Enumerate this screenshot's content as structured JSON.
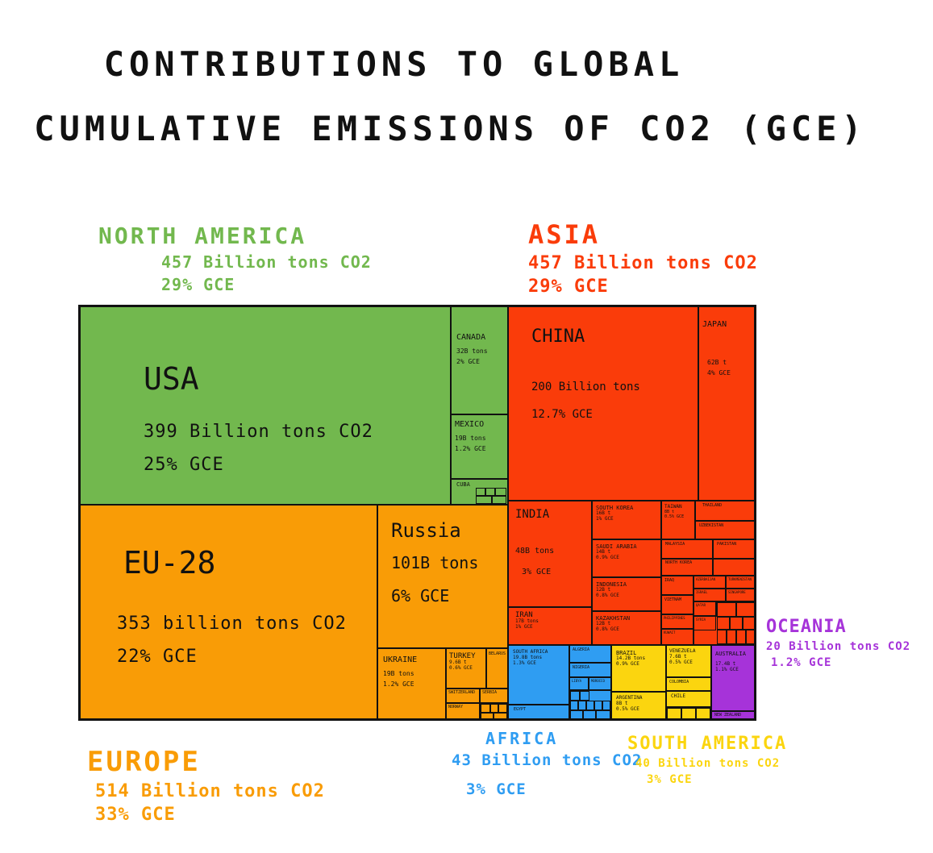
{
  "title_line1": "CONTRIBUTIONS TO GLOBAL",
  "title_line2": "CUMULATIVE EMISSIONS OF CO2 (GCE)",
  "colors": {
    "north_america": "#72b84e",
    "asia": "#fa3c0a",
    "europe": "#f99c06",
    "africa": "#2f9df2",
    "south_america": "#fbd50f",
    "oceania": "#a633d9"
  },
  "regions": {
    "north_america": {
      "name": "NORTH AMERICA",
      "amount": "457 Billion tons CO2",
      "share": "29%  GCE"
    },
    "asia": {
      "name": "ASIA",
      "amount": "457 Billion tons CO2",
      "share": "29%  GCE"
    },
    "europe": {
      "name": "EUROPE",
      "amount": "514 Billion tons CO2",
      "share": "33%  GCE"
    },
    "africa": {
      "name": "AFRICA",
      "amount": "43 Billion tons CO2",
      "share": "3%  GCE"
    },
    "south_america": {
      "name": "SOUTH AMERICA",
      "amount": "40 Billion tons CO2",
      "share": "3%  GCE"
    },
    "oceania": {
      "name": "OCEANIA",
      "amount": "20 Billion tons CO2",
      "share": "1.2%  GCE"
    }
  },
  "chart_data": {
    "type": "treemap",
    "title": "CONTRIBUTIONS TO GLOBAL CUMULATIVE EMISSIONS OF CO2 (GCE)",
    "regions": [
      {
        "name": "North America",
        "value": 457,
        "share": 29
      },
      {
        "name": "Asia",
        "value": 457,
        "share": 29
      },
      {
        "name": "Europe",
        "value": 514,
        "share": 33
      },
      {
        "name": "Africa",
        "value": 43,
        "share": 3
      },
      {
        "name": "South America",
        "value": 40,
        "share": 3
      },
      {
        "name": "Oceania",
        "value": 20,
        "share": 1.2
      }
    ],
    "cells": {
      "usa": {
        "name": "USA",
        "amount": "399 Billion tons CO2",
        "share": "25%  GCE",
        "value": 399
      },
      "canada": {
        "name": "CANADA",
        "amount": "32B tons",
        "share": "2%  GCE",
        "value": 32
      },
      "mexico": {
        "name": "MEXICO",
        "amount": "19B tons",
        "share": "1.2%  GCE",
        "value": 19
      },
      "cuba": {
        "name": "CUBA"
      },
      "eu28": {
        "name": "EU-28",
        "amount": "353 billion tons CO2",
        "share": "22%  GCE",
        "value": 353
      },
      "russia": {
        "name": "Russia",
        "amount": "101B tons",
        "share": "6%  GCE",
        "value": 101
      },
      "ukraine": {
        "name": "UKRAINE",
        "amount": "19B tons",
        "share": "1.2%  GCE",
        "value": 19
      },
      "turkey": {
        "name": "TURKEY",
        "amount": "9.6B t",
        "share": "0.6%  GCE",
        "value": 9.6
      },
      "belarus": {
        "name": "BELARUS"
      },
      "switzerland": {
        "name": "SWITZERLAND"
      },
      "serbia": {
        "name": "SERBIA"
      },
      "norway": {
        "name": "NORWAY"
      },
      "china": {
        "name": "CHINA",
        "amount": "200 Billion tons",
        "share": "12.7%  GCE",
        "value": 200
      },
      "japan": {
        "name": "JAPAN",
        "amount": "62B t",
        "share": "4%  GCE",
        "value": 62
      },
      "india": {
        "name": "INDIA",
        "amount": "48B tons",
        "share": "3%  GCE",
        "value": 48
      },
      "south_korea": {
        "name": "SOUTH KOREA",
        "amount": "16B t",
        "share": "1%  GCE",
        "value": 16
      },
      "saudi": {
        "name": "SAUDI ARABIA",
        "amount": "14B t",
        "share": "0.9%  GCE",
        "value": 14
      },
      "indonesia": {
        "name": "INDONESIA",
        "amount": "12B t",
        "share": "0.8%  GCE",
        "value": 12
      },
      "iran": {
        "name": "IRAN",
        "amount": "17B tons",
        "share": "1%  GCE",
        "value": 17
      },
      "kazakhstan": {
        "name": "KAZAKHSTAN",
        "amount": "12B t",
        "share": "0.8%  GCE",
        "value": 12
      },
      "taiwan": {
        "name": "TAIWAN",
        "amount": "8B t",
        "share": "0.5%  GCE",
        "value": 8
      },
      "thailand": {
        "name": "THAILAND"
      },
      "uzbekistan": {
        "name": "UZBEKISTAN"
      },
      "malaysia": {
        "name": "MALAYSIA"
      },
      "pakistan": {
        "name": "PAKISTAN"
      },
      "north_korea": {
        "name": "NORTH KOREA"
      },
      "iraq": {
        "name": "IRAQ"
      },
      "azerbaijan": {
        "name": "AZERBAIJAN"
      },
      "turkmenistan": {
        "name": "TURKMENISTAN"
      },
      "vietnam": {
        "name": "VIETNAM"
      },
      "israel": {
        "name": "ISRAEL"
      },
      "singapore": {
        "name": "SINGAPORE"
      },
      "philippines": {
        "name": "PHILIPPINES"
      },
      "qatar": {
        "name": "QATAR"
      },
      "kuwait": {
        "name": "KUWAIT"
      },
      "syria": {
        "name": "SYRIA"
      },
      "south_africa": {
        "name": "SOUTH AFRICA",
        "amount": "19.8B tons",
        "share": "1.3%  GCE",
        "value": 19.8
      },
      "algeria": {
        "name": "ALGERIA"
      },
      "nigeria": {
        "name": "NIGERIA"
      },
      "libya": {
        "name": "LIBYA"
      },
      "morocco": {
        "name": "MOROCCO"
      },
      "tunisia": {
        "name": "TUNISIA"
      },
      "egypt": {
        "name": "EGYPT"
      },
      "brazil": {
        "name": "BRAZIL",
        "amount": "14.2B tons",
        "share": "0.9%  GCE",
        "value": 14.2
      },
      "argentina": {
        "name": "ARGENTINA",
        "amount": "8B t",
        "share": "0.5%  GCE",
        "value": 8
      },
      "venezuela": {
        "name": "VENEZUELA",
        "amount": "7.6B t",
        "share": "0.5%  GCE",
        "value": 7.6
      },
      "colombia": {
        "name": "COLOMBIA"
      },
      "chile": {
        "name": "CHILE"
      },
      "australia": {
        "name": "AUSTRALIA",
        "amount": "17.4B t",
        "share": "1.1%  GCE",
        "value": 17.4
      },
      "new_zealand": {
        "name": "NEW ZEALAND"
      }
    }
  }
}
